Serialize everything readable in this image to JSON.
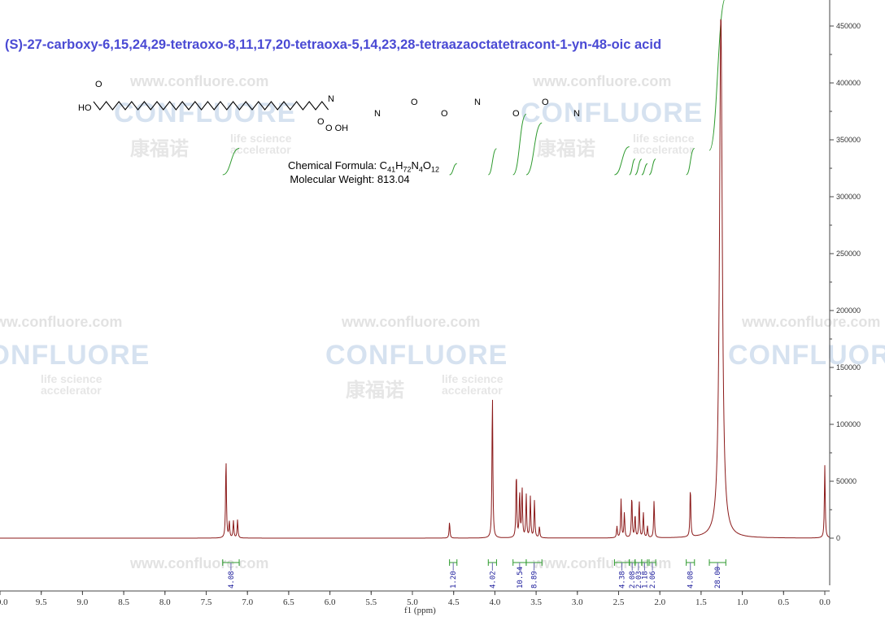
{
  "title": "(S)-27-carboxy-6,15,24,29-tetraoxo-8,11,17,20-tetraoxa-5,14,23,28-tetraazaoctatetracont-1-yn-48-oic acid",
  "formula": {
    "label": "Chemical Formula: ",
    "text": "C41H72N4O12"
  },
  "molecular_weight": "Molecular Weight: 813.04",
  "watermark": {
    "url": "www.confluore.com",
    "brand": "CONFLUORE",
    "cn": "康福诺",
    "sub1": "life science",
    "sub2": "accelerator"
  },
  "colors": {
    "spectrum": "#8b1a1a",
    "integral": "#2e9a2e",
    "title": "#4a4ad4",
    "integral_label": "#1a1a9a"
  },
  "chart_data": {
    "type": "line",
    "title": "",
    "xlabel": "f1 (ppm)",
    "ylabel": "",
    "xlim": [
      10.0,
      0.0
    ],
    "ylim": [
      -50000,
      470000
    ],
    "x_reversed": true,
    "x_ticks": [
      "10.0",
      "9.5",
      "9.0",
      "8.5",
      "8.0",
      "7.5",
      "7.0",
      "6.5",
      "6.0",
      "5.5",
      "5.0",
      "4.5",
      "4.0",
      "3.5",
      "3.0",
      "2.5",
      "2.0",
      "1.5",
      "1.0",
      "0.5",
      "0.0"
    ],
    "y_ticks": [
      "0",
      "50000",
      "100000",
      "150000",
      "200000",
      "250000",
      "300000",
      "350000",
      "400000",
      "450000"
    ],
    "y_axis_position": "right",
    "peaks": [
      {
        "ppm": 7.26,
        "intensity": 70000
      },
      {
        "ppm": 7.22,
        "intensity": 14000
      },
      {
        "ppm": 7.17,
        "intensity": 15000
      },
      {
        "ppm": 7.12,
        "intensity": 16000
      },
      {
        "ppm": 4.55,
        "intensity": 14000
      },
      {
        "ppm": 4.03,
        "intensity": 128000
      },
      {
        "ppm": 3.74,
        "intensity": 58000
      },
      {
        "ppm": 3.7,
        "intensity": 40000
      },
      {
        "ppm": 3.67,
        "intensity": 44000
      },
      {
        "ppm": 3.62,
        "intensity": 38000
      },
      {
        "ppm": 3.57,
        "intensity": 36000
      },
      {
        "ppm": 3.52,
        "intensity": 33000
      },
      {
        "ppm": 3.46,
        "intensity": 10000
      },
      {
        "ppm": 2.52,
        "intensity": 10000
      },
      {
        "ppm": 2.47,
        "intensity": 34000
      },
      {
        "ppm": 2.43,
        "intensity": 22000
      },
      {
        "ppm": 2.34,
        "intensity": 37000
      },
      {
        "ppm": 2.3,
        "intensity": 20000
      },
      {
        "ppm": 2.25,
        "intensity": 33000
      },
      {
        "ppm": 2.2,
        "intensity": 22000
      },
      {
        "ppm": 2.15,
        "intensity": 10000
      },
      {
        "ppm": 2.07,
        "intensity": 33000
      },
      {
        "ppm": 1.63,
        "intensity": 44000
      },
      {
        "ppm": 1.26,
        "intensity": 462000
      },
      {
        "ppm": 0.0,
        "intensity": 64000
      }
    ],
    "integrals": [
      {
        "from": 7.3,
        "to": 7.1,
        "value": "4.08"
      },
      {
        "from": 4.55,
        "to": 4.46,
        "value": "1.20"
      },
      {
        "from": 4.08,
        "to": 3.98,
        "value": "4.02"
      },
      {
        "from": 3.78,
        "to": 3.62,
        "value": "10.54"
      },
      {
        "from": 3.62,
        "to": 3.43,
        "value": "8.89"
      },
      {
        "from": 2.55,
        "to": 2.37,
        "value": "4.38"
      },
      {
        "from": 2.37,
        "to": 2.3,
        "value": "2.08"
      },
      {
        "from": 2.3,
        "to": 2.22,
        "value": "2.03"
      },
      {
        "from": 2.22,
        "to": 2.15,
        "value": "1.18"
      },
      {
        "from": 2.13,
        "to": 2.05,
        "value": "2.06"
      },
      {
        "from": 1.68,
        "to": 1.58,
        "value": "4.08"
      },
      {
        "from": 1.4,
        "to": 1.2,
        "value": "28.00"
      }
    ]
  }
}
